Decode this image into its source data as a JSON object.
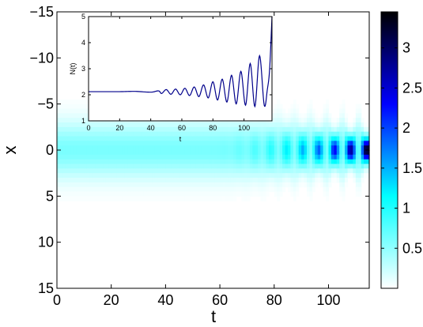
{
  "chart_data": [
    {
      "type": "heatmap",
      "xlabel": "t",
      "ylabel": "x",
      "xlim": [
        0,
        115
      ],
      "ylim": [
        -15,
        15
      ],
      "y_axis_reversed": true,
      "x_ticks": [
        "0",
        "20",
        "40",
        "60",
        "80",
        "100"
      ],
      "x_tick_values": [
        0,
        20,
        40,
        60,
        80,
        100
      ],
      "y_ticks": [
        "−15",
        "−10",
        "−5",
        "0",
        "5",
        "10",
        "15"
      ],
      "y_tick_values": [
        -15,
        -10,
        -5,
        0,
        5,
        10,
        15
      ],
      "colorbar": {
        "range": [
          0,
          3.45
        ],
        "ticks": [
          "0.5",
          "1",
          "1.5",
          "2",
          "2.5",
          "3"
        ],
        "tick_values": [
          0.5,
          1,
          1.5,
          2,
          2.5,
          3
        ],
        "colormap": [
          "#ffffff",
          "#00ffff",
          "#0000ff",
          "#000000"
        ]
      },
      "field": {
        "base_peak": 0.6,
        "half_width": 2.1,
        "breathing_starts_at": 55,
        "breathing_period": 5.9,
        "max_peak_at_end": 3.45,
        "collapse_time": 114
      }
    },
    {
      "type": "line",
      "xlabel": "t",
      "ylabel": "N(t)",
      "xlim": [
        0,
        118
      ],
      "ylim": [
        1,
        5
      ],
      "x_ticks": [
        "0",
        "20",
        "40",
        "60",
        "80",
        "100"
      ],
      "x_tick_values": [
        0,
        20,
        40,
        60,
        80,
        100
      ],
      "y_ticks": [
        "1",
        "2",
        "3",
        "4",
        "5"
      ],
      "y_tick_values": [
        1,
        2,
        3,
        4,
        5
      ],
      "series": [
        {
          "color": "#00008b",
          "x": [
            0,
            10,
            20,
            30,
            40,
            45,
            47,
            50,
            53,
            56,
            59,
            62,
            65,
            68,
            71,
            74,
            77,
            80,
            83,
            86,
            89,
            92,
            95,
            98,
            101,
            104,
            107,
            110,
            113,
            115,
            116.5,
            118
          ],
          "y": [
            2.12,
            2.12,
            2.12,
            2.13,
            2.1,
            2.15,
            2.05,
            2.2,
            2.02,
            2.22,
            2.0,
            2.25,
            1.97,
            2.3,
            1.93,
            2.38,
            1.88,
            2.5,
            1.8,
            2.6,
            1.72,
            2.75,
            1.65,
            2.9,
            1.6,
            3.2,
            1.55,
            3.5,
            1.6,
            2.2,
            3.0,
            5.0
          ]
        }
      ]
    }
  ]
}
